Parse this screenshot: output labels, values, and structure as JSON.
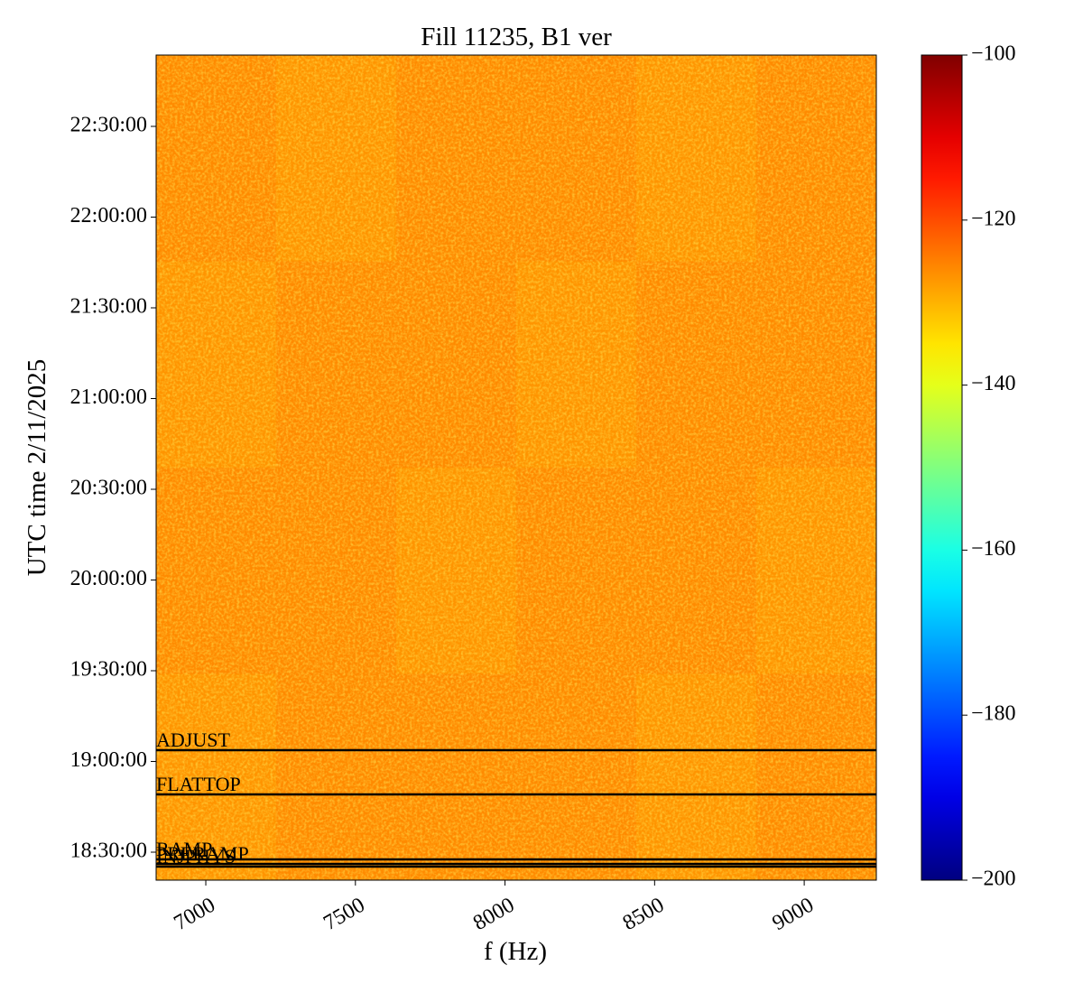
{
  "chart_data": {
    "type": "heatmap",
    "title": "Fill 11235, B1 ver",
    "xlabel": "f (Hz)",
    "ylabel": "UTC time 2/11/2025",
    "xlim": [
      6834,
      9241
    ],
    "xticks": [
      7000,
      7500,
      8000,
      8500,
      9000
    ],
    "ylim": [
      66045,
      82415
    ],
    "yticks": [
      {
        "value": 66600,
        "label": "18:30:00"
      },
      {
        "value": 68400,
        "label": "19:00:00"
      },
      {
        "value": 70200,
        "label": "19:30:00"
      },
      {
        "value": 72000,
        "label": "20:00:00"
      },
      {
        "value": 73800,
        "label": "20:30:00"
      },
      {
        "value": 75600,
        "label": "21:00:00"
      },
      {
        "value": 77400,
        "label": "21:30:00"
      },
      {
        "value": 79200,
        "label": "22:00:00"
      },
      {
        "value": 81000,
        "label": "22:30:00"
      }
    ],
    "colormap": "jet",
    "clim": [
      -200,
      -100
    ],
    "cticks": [
      {
        "value": -100,
        "label": "−100"
      },
      {
        "value": -120,
        "label": "−120"
      },
      {
        "value": -140,
        "label": "−140"
      },
      {
        "value": -160,
        "label": "−160"
      },
      {
        "value": -180,
        "label": "−180"
      },
      {
        "value": -200,
        "label": "−200"
      }
    ],
    "z": [
      [
        -126,
        -127,
        -126,
        -126,
        -127,
        -126
      ],
      [
        -127,
        -126,
        -126,
        -127,
        -126,
        -126
      ],
      [
        -126,
        -126,
        -127,
        -126,
        -126,
        -127
      ],
      [
        -127,
        -126,
        -126,
        -126,
        -127,
        -126
      ]
    ],
    "events": [
      {
        "label": "ADJUST",
        "time": 68624
      },
      {
        "label": "FLATTOP",
        "time": 67746
      },
      {
        "label": "RAMP",
        "time": 66457
      },
      {
        "label": "PRERAMP",
        "time": 66367
      },
      {
        "label": "INJPHYS",
        "time": 66313
      }
    ]
  }
}
